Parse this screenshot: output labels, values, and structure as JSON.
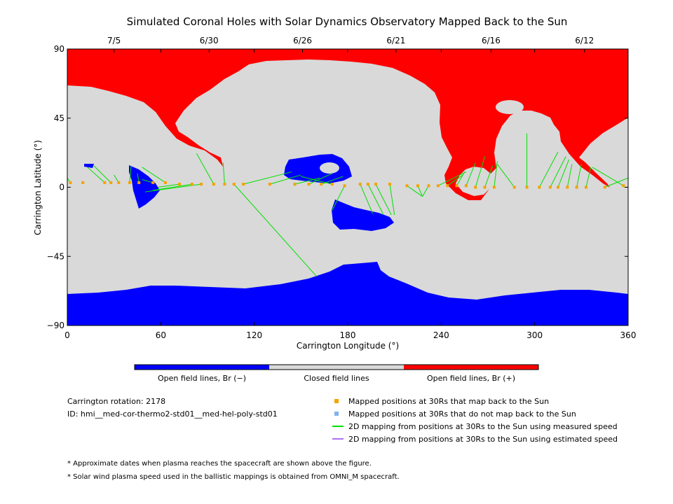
{
  "chart_data": {
    "type": "map",
    "title": "Simulated Coronal Holes with Solar Dynamics Observatory Mapped Back to the Sun",
    "xlabel": "Carrington Longitude (°)",
    "ylabel": "Carrington Latitude (°)",
    "xlim": [
      0,
      360
    ],
    "ylim": [
      -90,
      90
    ],
    "x_ticks": [
      0,
      60,
      120,
      180,
      240,
      300,
      360
    ],
    "y_ticks": [
      -90,
      -45,
      0,
      45,
      90
    ],
    "top_date_ticks": [
      {
        "label": "7/5",
        "lon": 30
      },
      {
        "label": "6/30",
        "lon": 91
      },
      {
        "label": "6/26",
        "lon": 151
      },
      {
        "label": "6/21",
        "lon": 211
      },
      {
        "label": "6/16",
        "lon": 272
      },
      {
        "label": "6/12",
        "lon": 332
      }
    ],
    "colorbar": [
      {
        "label": "Open field lines, Br (−)",
        "color": "#0000ff"
      },
      {
        "label": "Closed field lines",
        "color": "#d9d9d9"
      },
      {
        "label": "Open field lines, Br (+)",
        "color": "#ff0000"
      }
    ],
    "mapped_points": [
      {
        "lon": 2,
        "lat": 3
      },
      {
        "lon": 10,
        "lat": 3
      },
      {
        "lon": 24,
        "lat": 3
      },
      {
        "lon": 28,
        "lat": 3
      },
      {
        "lon": 33,
        "lat": 3
      },
      {
        "lon": 40,
        "lat": 3
      },
      {
        "lon": 46,
        "lat": 3
      },
      {
        "lon": 55,
        "lat": 3
      },
      {
        "lon": 63,
        "lat": 3
      },
      {
        "lon": 72,
        "lat": 2
      },
      {
        "lon": 80,
        "lat": 2
      },
      {
        "lon": 86,
        "lat": 2
      },
      {
        "lon": 94,
        "lat": 2
      },
      {
        "lon": 101,
        "lat": 2
      },
      {
        "lon": 107,
        "lat": 2
      },
      {
        "lon": 113,
        "lat": 2
      },
      {
        "lon": 130,
        "lat": 2
      },
      {
        "lon": 146,
        "lat": 2
      },
      {
        "lon": 155,
        "lat": 2
      },
      {
        "lon": 163,
        "lat": 2
      },
      {
        "lon": 170,
        "lat": 2
      },
      {
        "lon": 178,
        "lat": 1
      },
      {
        "lon": 188,
        "lat": 2
      },
      {
        "lon": 193,
        "lat": 2
      },
      {
        "lon": 198,
        "lat": 2
      },
      {
        "lon": 207,
        "lat": 2
      },
      {
        "lon": 218,
        "lat": 1
      },
      {
        "lon": 225,
        "lat": 1
      },
      {
        "lon": 232,
        "lat": 1
      },
      {
        "lon": 238,
        "lat": 1
      },
      {
        "lon": 244,
        "lat": 1
      },
      {
        "lon": 250,
        "lat": 1
      },
      {
        "lon": 256,
        "lat": 1
      },
      {
        "lon": 262,
        "lat": 0
      },
      {
        "lon": 268,
        "lat": 0
      },
      {
        "lon": 274,
        "lat": 0
      },
      {
        "lon": 287,
        "lat": 0
      },
      {
        "lon": 295,
        "lat": 0
      },
      {
        "lon": 303,
        "lat": 0
      },
      {
        "lon": 310,
        "lat": 0
      },
      {
        "lon": 315,
        "lat": 0
      },
      {
        "lon": 321,
        "lat": 0
      },
      {
        "lon": 327,
        "lat": 0
      },
      {
        "lon": 333,
        "lat": 0
      },
      {
        "lon": 345,
        "lat": 0
      },
      {
        "lon": 357,
        "lat": 1
      }
    ],
    "mapping_lines": [
      {
        "from": [
          2,
          3
        ],
        "to": [
          0,
          6
        ]
      },
      {
        "from": [
          24,
          3
        ],
        "to": [
          13,
          13
        ]
      },
      {
        "from": [
          28,
          3
        ],
        "to": [
          17,
          14
        ]
      },
      {
        "from": [
          33,
          3
        ],
        "to": [
          30,
          8
        ]
      },
      {
        "from": [
          40,
          3
        ],
        "to": [
          41,
          14
        ]
      },
      {
        "from": [
          46,
          3
        ],
        "to": [
          45,
          9
        ]
      },
      {
        "from": [
          55,
          3
        ],
        "to": [
          48,
          5
        ]
      },
      {
        "from": [
          63,
          3
        ],
        "to": [
          48,
          13
        ]
      },
      {
        "from": [
          72,
          2
        ],
        "to": [
          58,
          0
        ]
      },
      {
        "from": [
          80,
          2
        ],
        "to": [
          55,
          -2
        ]
      },
      {
        "from": [
          86,
          2
        ],
        "to": [
          50,
          -3
        ]
      },
      {
        "from": [
          94,
          2
        ],
        "to": [
          83,
          22
        ]
      },
      {
        "from": [
          101,
          2
        ],
        "to": [
          100,
          16
        ]
      },
      {
        "from": [
          107,
          2
        ],
        "to": [
          160,
          -58
        ]
      },
      {
        "from": [
          113,
          2
        ],
        "to": [
          144,
          10
        ]
      },
      {
        "from": [
          130,
          2
        ],
        "to": [
          150,
          8
        ]
      },
      {
        "from": [
          146,
          2
        ],
        "to": [
          162,
          6
        ]
      },
      {
        "from": [
          155,
          2
        ],
        "to": [
          170,
          9
        ]
      },
      {
        "from": [
          163,
          2
        ],
        "to": [
          177,
          7
        ]
      },
      {
        "from": [
          170,
          2
        ],
        "to": [
          150,
          7
        ]
      },
      {
        "from": [
          178,
          1
        ],
        "to": [
          170,
          -15
        ]
      },
      {
        "from": [
          188,
          2
        ],
        "to": [
          196,
          -17
        ]
      },
      {
        "from": [
          193,
          2
        ],
        "to": [
          203,
          -18
        ]
      },
      {
        "from": [
          198,
          2
        ],
        "to": [
          208,
          -18
        ]
      },
      {
        "from": [
          207,
          2
        ],
        "to": [
          210,
          -18
        ]
      },
      {
        "from": [
          218,
          1
        ],
        "to": [
          228,
          -6
        ]
      },
      {
        "from": [
          225,
          1
        ],
        "to": [
          228,
          -6
        ]
      },
      {
        "from": [
          232,
          1
        ],
        "to": [
          228,
          -6
        ]
      },
      {
        "from": [
          238,
          1
        ],
        "to": [
          256,
          10
        ]
      },
      {
        "from": [
          244,
          1
        ],
        "to": [
          254,
          8
        ]
      },
      {
        "from": [
          250,
          1
        ],
        "to": [
          255,
          10
        ]
      },
      {
        "from": [
          256,
          1
        ],
        "to": [
          262,
          16
        ]
      },
      {
        "from": [
          262,
          0
        ],
        "to": [
          268,
          20
        ]
      },
      {
        "from": [
          268,
          0
        ],
        "to": [
          273,
          14
        ]
      },
      {
        "from": [
          274,
          0
        ],
        "to": [
          276,
          17
        ]
      },
      {
        "from": [
          287,
          0
        ],
        "to": [
          276,
          15
        ]
      },
      {
        "from": [
          295,
          0
        ],
        "to": [
          295,
          35
        ]
      },
      {
        "from": [
          303,
          0
        ],
        "to": [
          315,
          23
        ]
      },
      {
        "from": [
          310,
          0
        ],
        "to": [
          320,
          20
        ]
      },
      {
        "from": [
          315,
          0
        ],
        "to": [
          322,
          18
        ]
      },
      {
        "from": [
          321,
          0
        ],
        "to": [
          324,
          15
        ]
      },
      {
        "from": [
          327,
          0
        ],
        "to": [
          330,
          15
        ]
      },
      {
        "from": [
          333,
          0
        ],
        "to": [
          336,
          13
        ]
      },
      {
        "from": [
          345,
          0
        ],
        "to": [
          360,
          6
        ]
      },
      {
        "from": [
          357,
          1
        ],
        "to": [
          337,
          13
        ]
      }
    ]
  },
  "info": {
    "rotation": "Carrington rotation: 2178",
    "id": "ID: hmi__med-cor-thermo2-std01__med-hel-poly-std01"
  },
  "legend": [
    {
      "kind": "square",
      "color": "#f4a300",
      "label": "Mapped positions at 30Rs that map back to the Sun"
    },
    {
      "kind": "square",
      "color": "#7fb4ee",
      "label": "Mapped positions at 30Rs that do not map back to the Sun"
    },
    {
      "kind": "line",
      "color": "#00e000",
      "label": "2D mapping from positions at 30Rs to the Sun using measured speed"
    },
    {
      "kind": "line",
      "color": "#b070f0",
      "label": "2D mapping from positions at 30Rs to the Sun using estimated speed"
    }
  ],
  "footnotes": [
    "* Approximate dates when plasma reaches the spacecraft are shown above the figure.",
    "* Solar wind plasma speed used in the ballistic mappings is obtained from OMNI_M spacecraft."
  ]
}
